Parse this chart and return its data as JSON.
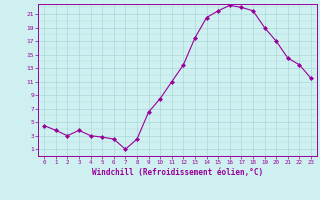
{
  "x": [
    0,
    1,
    2,
    3,
    4,
    5,
    6,
    7,
    8,
    9,
    10,
    11,
    12,
    13,
    14,
    15,
    16,
    17,
    18,
    19,
    20,
    21,
    22,
    23
  ],
  "y": [
    4.5,
    3.8,
    3.0,
    3.8,
    3.0,
    2.8,
    2.5,
    1.0,
    2.5,
    6.5,
    8.5,
    11.0,
    13.5,
    17.5,
    20.5,
    21.5,
    22.3,
    22.0,
    21.5,
    19.0,
    17.0,
    14.5,
    13.5,
    11.5
  ],
  "line_color": "#990099",
  "marker": "D",
  "marker_size": 2,
  "bg_color": "#cff0f0",
  "grid_color": "#aad8d8",
  "axis_color": "#990099",
  "xlabel": "Windchill (Refroidissement éolien,°C)",
  "ylabel_ticks": [
    1,
    3,
    5,
    7,
    9,
    11,
    13,
    15,
    17,
    19,
    21
  ],
  "xlim": [
    -0.5,
    23.5
  ],
  "ylim": [
    0,
    22.5
  ],
  "figsize": [
    3.2,
    2.0
  ],
  "dpi": 100
}
